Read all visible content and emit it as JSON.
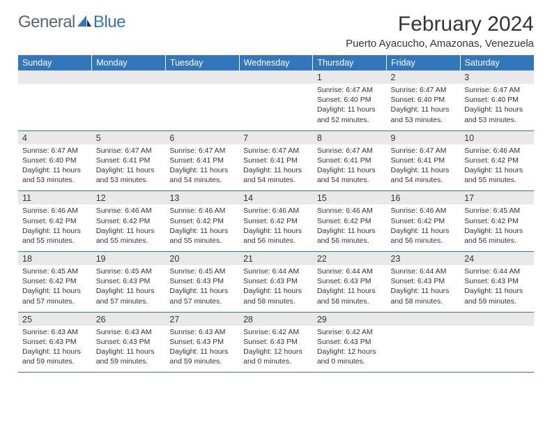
{
  "brand": {
    "part1": "General",
    "part2": "Blue"
  },
  "title": "February 2024",
  "location": "Puerto Ayacucho, Amazonas, Venezuela",
  "header_bg": "#3277bd",
  "daynum_bg": "#e9e9e9",
  "text_color": "#333333",
  "weekdays": [
    "Sunday",
    "Monday",
    "Tuesday",
    "Wednesday",
    "Thursday",
    "Friday",
    "Saturday"
  ],
  "weeks": [
    [
      null,
      null,
      null,
      null,
      {
        "n": "1",
        "sr": "6:47 AM",
        "ss": "6:40 PM",
        "dl": "11 hours and 52 minutes."
      },
      {
        "n": "2",
        "sr": "6:47 AM",
        "ss": "6:40 PM",
        "dl": "11 hours and 53 minutes."
      },
      {
        "n": "3",
        "sr": "6:47 AM",
        "ss": "6:40 PM",
        "dl": "11 hours and 53 minutes."
      }
    ],
    [
      {
        "n": "4",
        "sr": "6:47 AM",
        "ss": "6:40 PM",
        "dl": "11 hours and 53 minutes."
      },
      {
        "n": "5",
        "sr": "6:47 AM",
        "ss": "6:41 PM",
        "dl": "11 hours and 53 minutes."
      },
      {
        "n": "6",
        "sr": "6:47 AM",
        "ss": "6:41 PM",
        "dl": "11 hours and 54 minutes."
      },
      {
        "n": "7",
        "sr": "6:47 AM",
        "ss": "6:41 PM",
        "dl": "11 hours and 54 minutes."
      },
      {
        "n": "8",
        "sr": "6:47 AM",
        "ss": "6:41 PM",
        "dl": "11 hours and 54 minutes."
      },
      {
        "n": "9",
        "sr": "6:47 AM",
        "ss": "6:41 PM",
        "dl": "11 hours and 54 minutes."
      },
      {
        "n": "10",
        "sr": "6:46 AM",
        "ss": "6:42 PM",
        "dl": "11 hours and 55 minutes."
      }
    ],
    [
      {
        "n": "11",
        "sr": "6:46 AM",
        "ss": "6:42 PM",
        "dl": "11 hours and 55 minutes."
      },
      {
        "n": "12",
        "sr": "6:46 AM",
        "ss": "6:42 PM",
        "dl": "11 hours and 55 minutes."
      },
      {
        "n": "13",
        "sr": "6:46 AM",
        "ss": "6:42 PM",
        "dl": "11 hours and 55 minutes."
      },
      {
        "n": "14",
        "sr": "6:46 AM",
        "ss": "6:42 PM",
        "dl": "11 hours and 56 minutes."
      },
      {
        "n": "15",
        "sr": "6:46 AM",
        "ss": "6:42 PM",
        "dl": "11 hours and 56 minutes."
      },
      {
        "n": "16",
        "sr": "6:46 AM",
        "ss": "6:42 PM",
        "dl": "11 hours and 56 minutes."
      },
      {
        "n": "17",
        "sr": "6:45 AM",
        "ss": "6:42 PM",
        "dl": "11 hours and 56 minutes."
      }
    ],
    [
      {
        "n": "18",
        "sr": "6:45 AM",
        "ss": "6:42 PM",
        "dl": "11 hours and 57 minutes."
      },
      {
        "n": "19",
        "sr": "6:45 AM",
        "ss": "6:43 PM",
        "dl": "11 hours and 57 minutes."
      },
      {
        "n": "20",
        "sr": "6:45 AM",
        "ss": "6:43 PM",
        "dl": "11 hours and 57 minutes."
      },
      {
        "n": "21",
        "sr": "6:44 AM",
        "ss": "6:43 PM",
        "dl": "11 hours and 58 minutes."
      },
      {
        "n": "22",
        "sr": "6:44 AM",
        "ss": "6:43 PM",
        "dl": "11 hours and 58 minutes."
      },
      {
        "n": "23",
        "sr": "6:44 AM",
        "ss": "6:43 PM",
        "dl": "11 hours and 58 minutes."
      },
      {
        "n": "24",
        "sr": "6:44 AM",
        "ss": "6:43 PM",
        "dl": "11 hours and 59 minutes."
      }
    ],
    [
      {
        "n": "25",
        "sr": "6:43 AM",
        "ss": "6:43 PM",
        "dl": "11 hours and 59 minutes."
      },
      {
        "n": "26",
        "sr": "6:43 AM",
        "ss": "6:43 PM",
        "dl": "11 hours and 59 minutes."
      },
      {
        "n": "27",
        "sr": "6:43 AM",
        "ss": "6:43 PM",
        "dl": "11 hours and 59 minutes."
      },
      {
        "n": "28",
        "sr": "6:42 AM",
        "ss": "6:43 PM",
        "dl": "12 hours and 0 minutes."
      },
      {
        "n": "29",
        "sr": "6:42 AM",
        "ss": "6:43 PM",
        "dl": "12 hours and 0 minutes."
      },
      null,
      null
    ]
  ],
  "labels": {
    "sunrise": "Sunrise:",
    "sunset": "Sunset:",
    "daylight": "Daylight:"
  }
}
